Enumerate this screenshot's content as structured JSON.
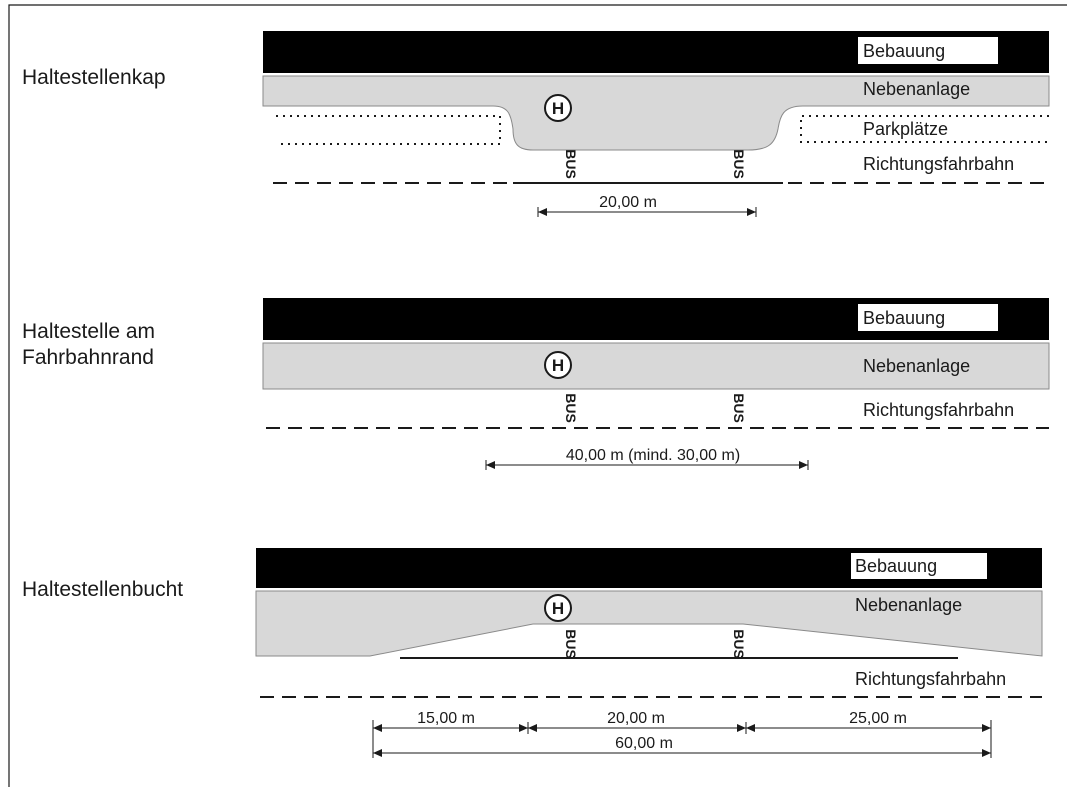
{
  "diagrams": [
    {
      "title": "Haltestellenkap",
      "labels": {
        "bebauung": "Bebauung",
        "nebenanlage": "Nebenanlage",
        "parkplaetze": "Parkplätze",
        "fahrbahn": "Richtungsfahrbahn"
      },
      "stop_symbol": "H",
      "bus_marking": "BUS",
      "dimensions": [
        "20,00 m"
      ]
    },
    {
      "title_lines": [
        "Haltestelle am",
        "Fahrbahnrand"
      ],
      "labels": {
        "bebauung": "Bebauung",
        "nebenanlage": "Nebenanlage",
        "fahrbahn": "Richtungsfahrbahn"
      },
      "stop_symbol": "H",
      "bus_marking": "BUS",
      "dimensions": [
        "40,00 m (mind. 30,00 m)"
      ]
    },
    {
      "title": "Haltestellenbucht",
      "labels": {
        "bebauung": "Bebauung",
        "nebenanlage": "Nebenanlage",
        "fahrbahn": "Richtungsfahrbahn"
      },
      "stop_symbol": "H",
      "bus_marking": "BUS",
      "dimensions": [
        "15,00 m",
        "20,00 m",
        "25,00 m",
        "60,00 m"
      ]
    }
  ],
  "colors": {
    "building": "#000000",
    "sidewalk": "#d8d8d8",
    "line": "#1a1a1a"
  }
}
